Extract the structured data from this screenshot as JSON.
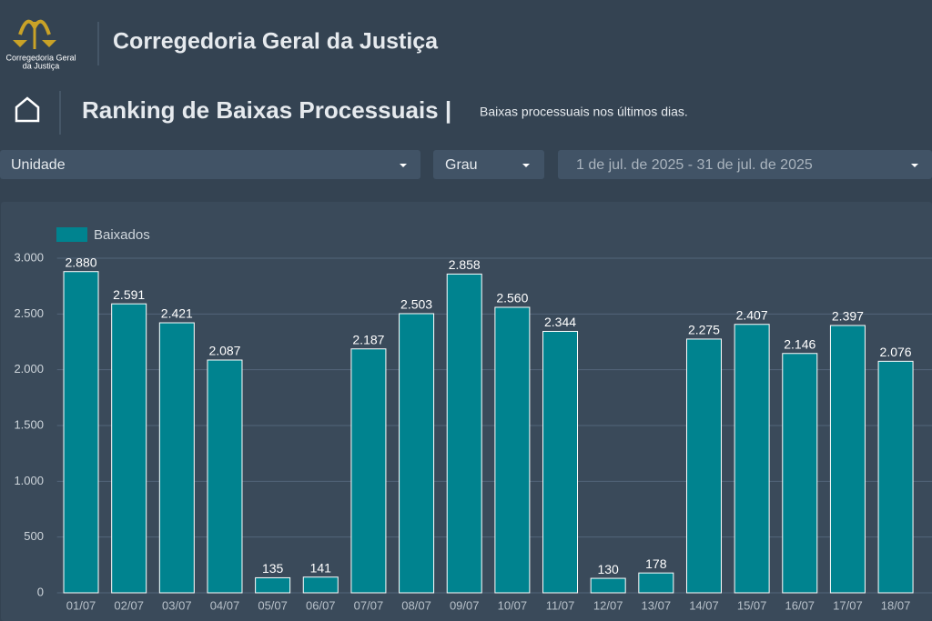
{
  "header": {
    "logo_text": [
      "Corregedoria Geral",
      "da Justiça"
    ],
    "title": "Corregedoria Geral da Justiça"
  },
  "page": {
    "title": "Ranking de Baixas Processuais |",
    "subtitle": "Baixas processuais nos últimos dias."
  },
  "filters": [
    "Unidade",
    "Grau",
    "1 de jul. de 2025 - 31 de jul. de 2025"
  ],
  "chart_data": {
    "type": "bar",
    "categories": [
      "01/07",
      "02/07",
      "03/07",
      "04/07",
      "05/07",
      "06/07",
      "07/07",
      "08/07",
      "09/07",
      "10/07",
      "11/07",
      "12/07",
      "13/07",
      "14/07",
      "15/07",
      "16/07",
      "17/07",
      "18/07"
    ],
    "series": [
      {
        "name": "Baixados",
        "color": "#00838f",
        "values": [
          2880,
          2591,
          2421,
          2087,
          135,
          141,
          2187,
          2503,
          2858,
          2560,
          2344,
          130,
          178,
          2275,
          2407,
          2146,
          2397,
          2076
        ],
        "value_labels": [
          "2.880",
          "2.591",
          "2.421",
          "2.087",
          "135",
          "141",
          "2.187",
          "2.503",
          "2.858",
          "2.560",
          "2.344",
          "130",
          "178",
          "2.275",
          "2.407",
          "2.146",
          "2.397",
          "2.076"
        ]
      }
    ],
    "ylim": [
      0,
      3000
    ],
    "yticks": [
      0,
      500,
      {
        "value": 1000,
        "label": "1.000"
      },
      {
        "value": 1500,
        "label": "1.500"
      },
      {
        "value": 2000,
        "label": "2.000"
      },
      {
        "value": 2500,
        "label": "2.500"
      },
      {
        "value": 3000,
        "label": "3.000"
      }
    ],
    "grid": true,
    "legend": "top-left"
  }
}
